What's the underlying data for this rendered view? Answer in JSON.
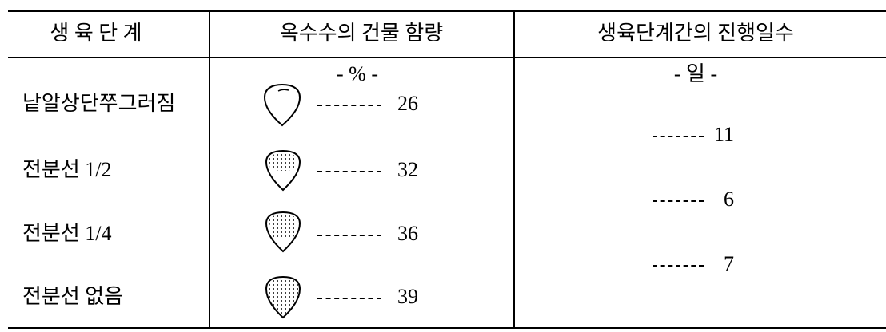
{
  "table": {
    "headers": [
      "생 육 단 계",
      "옥수수의 건물 함량",
      "생육단계간의 진행일수"
    ],
    "units": [
      "- % -",
      "- 일 -"
    ],
    "rows": [
      [
        "낱알상단쭈그러짐",
        26
      ],
      [
        "전분선 1/2",
        32
      ],
      [
        "전분선 1/4",
        36
      ],
      [
        "전분선 없음",
        39
      ]
    ],
    "intervals": [
      11,
      6,
      7
    ]
  }
}
